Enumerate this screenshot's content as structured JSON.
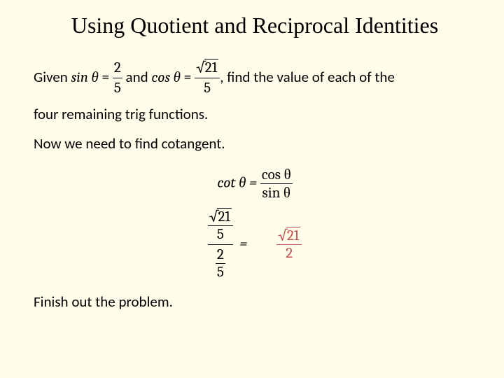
{
  "title": "Using Quotient and Reciprocal Identities",
  "given": {
    "prefix": "Given ",
    "sin_lhs": "sin θ",
    "eq": " = ",
    "sin_num": "2",
    "sin_den": "5",
    "mid": " and ",
    "cos_lhs": "cos θ",
    "cos_rad": "21",
    "cos_den": "5",
    "suffix": ", find the value of each of the"
  },
  "given_line2": "four remaining trig functions.",
  "need": "Now we need to find cotangent.",
  "cot_def": {
    "lhs": "cot θ",
    "eq": " = ",
    "num": "cos θ",
    "den": "sin θ"
  },
  "work": {
    "top_rad": "21",
    "top_den": "5",
    "bot_num": "2",
    "bot_den": "5",
    "eq": "=",
    "ans_rad": "21",
    "ans_den": "2"
  },
  "finish": "Finish out the problem.",
  "colors": {
    "bg": "#fffde9",
    "text": "#000000",
    "answer": "#c0504d"
  }
}
